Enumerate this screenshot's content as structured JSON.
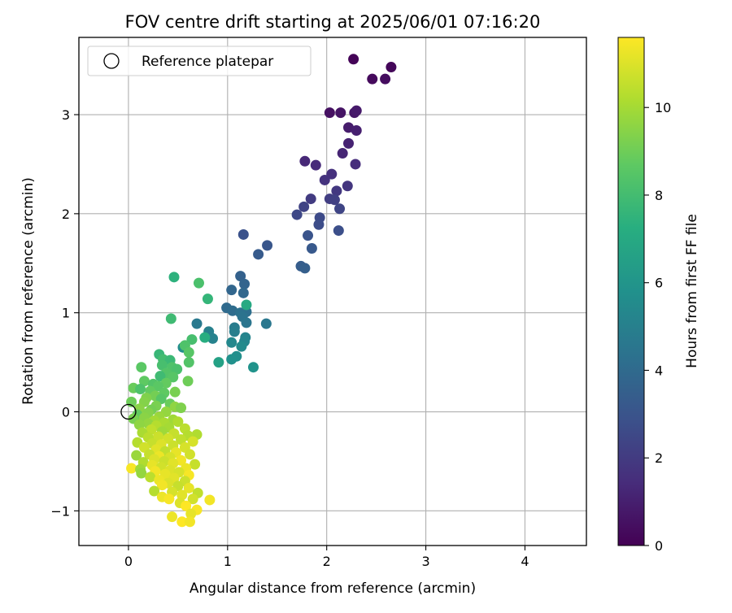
{
  "chart_data": {
    "type": "scatter",
    "title": "FOV centre drift starting at 2025/06/01 07:16:20",
    "xlabel": "Angular distance from reference (arcmin)",
    "ylabel": "Rotation from reference (arcmin)",
    "xlim": [
      -0.5,
      4.62
    ],
    "ylim": [
      -1.35,
      3.78
    ],
    "xticks": [
      0,
      1,
      2,
      3,
      4
    ],
    "yticks": [
      -1,
      0,
      1,
      2,
      3
    ],
    "grid": true,
    "legend": {
      "position": "top-left",
      "entries": [
        "Reference platepar"
      ]
    },
    "reference_point": {
      "x": 0,
      "y": 0
    },
    "colorbar": {
      "label": "Hours from first FF file",
      "colormap": "viridis",
      "range": [
        0,
        11.6
      ],
      "ticks": [
        0,
        2,
        4,
        6,
        8,
        10
      ]
    },
    "points": [
      {
        "x": 2.27,
        "y": 3.56,
        "c": 0.1
      },
      {
        "x": 2.65,
        "y": 3.48,
        "c": 0.2
      },
      {
        "x": 2.46,
        "y": 3.36,
        "c": 0.3
      },
      {
        "x": 2.59,
        "y": 3.36,
        "c": 0.4
      },
      {
        "x": 2.03,
        "y": 3.02,
        "c": 0.5
      },
      {
        "x": 2.14,
        "y": 3.02,
        "c": 0.6
      },
      {
        "x": 2.28,
        "y": 3.02,
        "c": 0.7
      },
      {
        "x": 2.3,
        "y": 3.04,
        "c": 0.8
      },
      {
        "x": 2.22,
        "y": 2.87,
        "c": 0.9
      },
      {
        "x": 2.3,
        "y": 2.84,
        "c": 1.0
      },
      {
        "x": 2.22,
        "y": 2.71,
        "c": 1.1
      },
      {
        "x": 2.16,
        "y": 2.61,
        "c": 1.2
      },
      {
        "x": 1.78,
        "y": 2.53,
        "c": 1.3
      },
      {
        "x": 1.89,
        "y": 2.49,
        "c": 1.4
      },
      {
        "x": 2.29,
        "y": 2.5,
        "c": 1.5
      },
      {
        "x": 2.05,
        "y": 2.4,
        "c": 1.6
      },
      {
        "x": 1.98,
        "y": 2.34,
        "c": 1.7
      },
      {
        "x": 2.21,
        "y": 2.28,
        "c": 1.8
      },
      {
        "x": 2.1,
        "y": 2.23,
        "c": 1.9
      },
      {
        "x": 1.84,
        "y": 2.15,
        "c": 2.0
      },
      {
        "x": 2.03,
        "y": 2.15,
        "c": 2.1
      },
      {
        "x": 2.08,
        "y": 2.14,
        "c": 2.2
      },
      {
        "x": 1.77,
        "y": 2.07,
        "c": 2.3
      },
      {
        "x": 2.13,
        "y": 2.05,
        "c": 2.4
      },
      {
        "x": 1.7,
        "y": 1.99,
        "c": 2.5
      },
      {
        "x": 1.93,
        "y": 1.96,
        "c": 2.6
      },
      {
        "x": 1.92,
        "y": 1.89,
        "c": 2.7
      },
      {
        "x": 2.12,
        "y": 1.83,
        "c": 2.8
      },
      {
        "x": 1.16,
        "y": 1.79,
        "c": 2.9
      },
      {
        "x": 1.81,
        "y": 1.78,
        "c": 3.0
      },
      {
        "x": 1.4,
        "y": 1.68,
        "c": 3.1
      },
      {
        "x": 1.85,
        "y": 1.65,
        "c": 3.2
      },
      {
        "x": 1.31,
        "y": 1.59,
        "c": 3.3
      },
      {
        "x": 1.74,
        "y": 1.47,
        "c": 3.4
      },
      {
        "x": 1.78,
        "y": 1.45,
        "c": 3.5
      },
      {
        "x": 1.13,
        "y": 1.37,
        "c": 3.6
      },
      {
        "x": 1.17,
        "y": 1.29,
        "c": 3.7
      },
      {
        "x": 1.04,
        "y": 1.23,
        "c": 3.8
      },
      {
        "x": 1.16,
        "y": 1.2,
        "c": 3.9
      },
      {
        "x": 0.99,
        "y": 1.05,
        "c": 4.0
      },
      {
        "x": 1.05,
        "y": 1.02,
        "c": 4.1
      },
      {
        "x": 1.19,
        "y": 1.01,
        "c": 4.2
      },
      {
        "x": 1.13,
        "y": 1.0,
        "c": 4.3
      },
      {
        "x": 1.15,
        "y": 0.96,
        "c": 4.4
      },
      {
        "x": 1.19,
        "y": 0.9,
        "c": 4.5
      },
      {
        "x": 1.39,
        "y": 0.89,
        "c": 4.6
      },
      {
        "x": 0.69,
        "y": 0.89,
        "c": 4.7
      },
      {
        "x": 1.07,
        "y": 0.85,
        "c": 4.8
      },
      {
        "x": 1.07,
        "y": 0.81,
        "c": 4.9
      },
      {
        "x": 0.81,
        "y": 0.81,
        "c": 5.0
      },
      {
        "x": 0.85,
        "y": 0.74,
        "c": 5.1
      },
      {
        "x": 1.18,
        "y": 0.75,
        "c": 5.2
      },
      {
        "x": 1.17,
        "y": 0.71,
        "c": 5.3
      },
      {
        "x": 1.04,
        "y": 0.7,
        "c": 5.4
      },
      {
        "x": 1.14,
        "y": 0.66,
        "c": 5.5
      },
      {
        "x": 0.55,
        "y": 0.65,
        "c": 5.6
      },
      {
        "x": 1.09,
        "y": 0.56,
        "c": 5.7
      },
      {
        "x": 1.04,
        "y": 0.53,
        "c": 5.8
      },
      {
        "x": 1.26,
        "y": 0.45,
        "c": 5.9
      },
      {
        "x": 0.91,
        "y": 0.5,
        "c": 6.6
      },
      {
        "x": 0.77,
        "y": 0.75,
        "c": 7.2
      },
      {
        "x": 1.19,
        "y": 1.08,
        "c": 7.0
      },
      {
        "x": 0.46,
        "y": 1.36,
        "c": 7.4
      },
      {
        "x": 0.8,
        "y": 1.14,
        "c": 7.6
      },
      {
        "x": 0.71,
        "y": 1.3,
        "c": 8.2
      },
      {
        "x": 0.43,
        "y": 0.94,
        "c": 7.9
      },
      {
        "x": 0.64,
        "y": 0.73,
        "c": 8.1
      },
      {
        "x": 0.57,
        "y": 0.67,
        "c": 8.3
      },
      {
        "x": 0.61,
        "y": 0.6,
        "c": 8.5
      },
      {
        "x": 0.31,
        "y": 0.58,
        "c": 7.7
      },
      {
        "x": 0.35,
        "y": 0.53,
        "c": 8.0
      },
      {
        "x": 0.42,
        "y": 0.52,
        "c": 7.8
      },
      {
        "x": 0.61,
        "y": 0.5,
        "c": 8.4
      },
      {
        "x": 0.34,
        "y": 0.47,
        "c": 8.1
      },
      {
        "x": 0.44,
        "y": 0.45,
        "c": 8.3
      },
      {
        "x": 0.13,
        "y": 0.45,
        "c": 8.6
      },
      {
        "x": 0.49,
        "y": 0.43,
        "c": 8.2
      },
      {
        "x": 0.38,
        "y": 0.39,
        "c": 8.4
      },
      {
        "x": 0.32,
        "y": 0.36,
        "c": 7.9
      },
      {
        "x": 0.45,
        "y": 0.35,
        "c": 8.5
      },
      {
        "x": 0.16,
        "y": 0.31,
        "c": 8.7
      },
      {
        "x": 0.38,
        "y": 0.29,
        "c": 8.8
      },
      {
        "x": 0.6,
        "y": 0.31,
        "c": 9.0
      },
      {
        "x": 0.25,
        "y": 0.28,
        "c": 8.4
      },
      {
        "x": 0.3,
        "y": 0.26,
        "c": 8.6
      },
      {
        "x": 0.05,
        "y": 0.24,
        "c": 8.9
      },
      {
        "x": 0.12,
        "y": 0.23,
        "c": 8.3
      },
      {
        "x": 0.22,
        "y": 0.21,
        "c": 8.8
      },
      {
        "x": 0.47,
        "y": 0.2,
        "c": 9.2
      },
      {
        "x": 0.36,
        "y": 0.19,
        "c": 8.7
      },
      {
        "x": 0.27,
        "y": 0.16,
        "c": 9.1
      },
      {
        "x": 0.18,
        "y": 0.14,
        "c": 9.3
      },
      {
        "x": 0.33,
        "y": 0.13,
        "c": 8.5
      },
      {
        "x": 0.16,
        "y": 0.1,
        "c": 9.4
      },
      {
        "x": 0.03,
        "y": 0.1,
        "c": 9.0
      },
      {
        "x": 0.42,
        "y": 0.08,
        "c": 8.9
      },
      {
        "x": 0.28,
        "y": 0.06,
        "c": 9.2
      },
      {
        "x": 0.47,
        "y": 0.05,
        "c": 9.6
      },
      {
        "x": 0.53,
        "y": 0.04,
        "c": 9.3
      },
      {
        "x": 0.11,
        "y": 0.03,
        "c": 9.5
      },
      {
        "x": 0.23,
        "y": 0.02,
        "c": 9.1
      },
      {
        "x": 0.38,
        "y": 0.0,
        "c": 9.7
      },
      {
        "x": 0.2,
        "y": -0.01,
        "c": 9.4
      },
      {
        "x": 0.09,
        "y": -0.03,
        "c": 8.8
      },
      {
        "x": 0.31,
        "y": -0.05,
        "c": 9.8
      },
      {
        "x": 0.16,
        "y": -0.06,
        "c": 9.5
      },
      {
        "x": 0.05,
        "y": -0.07,
        "c": 9.2
      },
      {
        "x": 0.26,
        "y": -0.09,
        "c": 10.0
      },
      {
        "x": 0.45,
        "y": -0.08,
        "c": 9.9
      },
      {
        "x": 0.36,
        "y": -0.11,
        "c": 10.1
      },
      {
        "x": 0.5,
        "y": -0.1,
        "c": 10.2
      },
      {
        "x": 0.2,
        "y": -0.12,
        "c": 9.7
      },
      {
        "x": 0.11,
        "y": -0.13,
        "c": 9.6
      },
      {
        "x": 0.28,
        "y": -0.14,
        "c": 10.3
      },
      {
        "x": 0.41,
        "y": -0.16,
        "c": 10.0
      },
      {
        "x": 0.57,
        "y": -0.17,
        "c": 10.4
      },
      {
        "x": 0.23,
        "y": -0.18,
        "c": 10.5
      },
      {
        "x": 0.34,
        "y": -0.2,
        "c": 9.9
      },
      {
        "x": 0.14,
        "y": -0.21,
        "c": 10.1
      },
      {
        "x": 0.46,
        "y": -0.22,
        "c": 10.6
      },
      {
        "x": 0.69,
        "y": -0.23,
        "c": 10.2
      },
      {
        "x": 0.6,
        "y": -0.24,
        "c": 10.3
      },
      {
        "x": 0.3,
        "y": -0.25,
        "c": 10.7
      },
      {
        "x": 0.2,
        "y": -0.26,
        "c": 10.4
      },
      {
        "x": 0.4,
        "y": -0.27,
        "c": 10.8
      },
      {
        "x": 0.53,
        "y": -0.28,
        "c": 10.5
      },
      {
        "x": 0.65,
        "y": -0.3,
        "c": 10.9
      },
      {
        "x": 0.09,
        "y": -0.31,
        "c": 10.3
      },
      {
        "x": 0.24,
        "y": -0.32,
        "c": 10.6
      },
      {
        "x": 0.33,
        "y": -0.33,
        "c": 11.0
      },
      {
        "x": 0.45,
        "y": -0.34,
        "c": 10.7
      },
      {
        "x": 0.16,
        "y": -0.36,
        "c": 10.8
      },
      {
        "x": 0.57,
        "y": -0.36,
        "c": 10.9
      },
      {
        "x": 0.28,
        "y": -0.38,
        "c": 11.1
      },
      {
        "x": 0.37,
        "y": -0.4,
        "c": 10.5
      },
      {
        "x": 0.48,
        "y": -0.41,
        "c": 11.2
      },
      {
        "x": 0.21,
        "y": -0.43,
        "c": 10.6
      },
      {
        "x": 0.62,
        "y": -0.43,
        "c": 10.8
      },
      {
        "x": 0.31,
        "y": -0.45,
        "c": 11.3
      },
      {
        "x": 0.42,
        "y": -0.46,
        "c": 10.9
      },
      {
        "x": 0.08,
        "y": -0.44,
        "c": 9.8
      },
      {
        "x": 0.26,
        "y": -0.48,
        "c": 11.0
      },
      {
        "x": 0.53,
        "y": -0.49,
        "c": 11.4
      },
      {
        "x": 0.36,
        "y": -0.5,
        "c": 10.7
      },
      {
        "x": 0.15,
        "y": -0.51,
        "c": 10.2
      },
      {
        "x": 0.45,
        "y": -0.52,
        "c": 11.1
      },
      {
        "x": 0.67,
        "y": -0.53,
        "c": 10.6
      },
      {
        "x": 0.24,
        "y": -0.54,
        "c": 11.2
      },
      {
        "x": 0.03,
        "y": -0.57,
        "c": 11.5
      },
      {
        "x": 0.33,
        "y": -0.56,
        "c": 10.8
      },
      {
        "x": 0.58,
        "y": -0.57,
        "c": 11.3
      },
      {
        "x": 0.12,
        "y": -0.58,
        "c": 9.9
      },
      {
        "x": 0.42,
        "y": -0.59,
        "c": 11.0
      },
      {
        "x": 0.27,
        "y": -0.6,
        "c": 11.4
      },
      {
        "x": 0.51,
        "y": -0.61,
        "c": 10.9
      },
      {
        "x": 0.13,
        "y": -0.62,
        "c": 9.7
      },
      {
        "x": 0.37,
        "y": -0.63,
        "c": 11.2
      },
      {
        "x": 0.61,
        "y": -0.64,
        "c": 11.5
      },
      {
        "x": 0.22,
        "y": -0.66,
        "c": 10.4
      },
      {
        "x": 0.46,
        "y": -0.67,
        "c": 11.1
      },
      {
        "x": 0.31,
        "y": -0.69,
        "c": 11.3
      },
      {
        "x": 0.57,
        "y": -0.7,
        "c": 10.7
      },
      {
        "x": 0.4,
        "y": -0.72,
        "c": 11.0
      },
      {
        "x": 0.34,
        "y": -0.74,
        "c": 11.4
      },
      {
        "x": 0.5,
        "y": -0.75,
        "c": 10.6
      },
      {
        "x": 0.61,
        "y": -0.77,
        "c": 11.2
      },
      {
        "x": 0.26,
        "y": -0.8,
        "c": 10.3
      },
      {
        "x": 0.44,
        "y": -0.81,
        "c": 10.9
      },
      {
        "x": 0.7,
        "y": -0.82,
        "c": 10.5
      },
      {
        "x": 0.54,
        "y": -0.84,
        "c": 11.1
      },
      {
        "x": 0.34,
        "y": -0.86,
        "c": 11.3
      },
      {
        "x": 0.41,
        "y": -0.88,
        "c": 11.5
      },
      {
        "x": 0.65,
        "y": -0.88,
        "c": 10.8
      },
      {
        "x": 0.82,
        "y": -0.89,
        "c": 11.4
      },
      {
        "x": 0.52,
        "y": -0.92,
        "c": 11.0
      },
      {
        "x": 0.58,
        "y": -0.95,
        "c": 11.6
      },
      {
        "x": 0.69,
        "y": -0.99,
        "c": 11.5
      },
      {
        "x": 0.63,
        "y": -1.03,
        "c": 11.2
      },
      {
        "x": 0.44,
        "y": -1.06,
        "c": 11.3
      },
      {
        "x": 0.54,
        "y": -1.11,
        "c": 11.6
      },
      {
        "x": 0.62,
        "y": -1.11,
        "c": 11.4
      }
    ]
  }
}
